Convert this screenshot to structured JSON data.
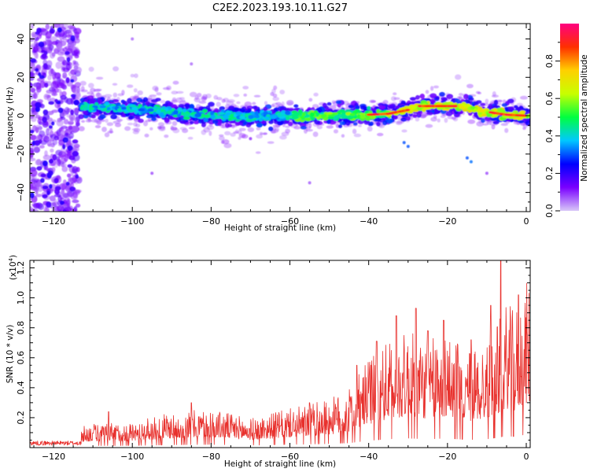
{
  "chart_data": [
    {
      "type": "heatmap",
      "title": "C2E2.2023.193.10.11.G27",
      "xlabel": "Height of straight line (km)",
      "ylabel": "Frequency (Hz)",
      "xlim": [
        -126,
        1
      ],
      "ylim": [
        -50,
        48
      ],
      "x_ticks": [
        -120,
        -100,
        -80,
        -60,
        -40,
        -20,
        0
      ],
      "y_ticks": [
        -40,
        -20,
        0,
        20,
        40
      ],
      "ridge": {
        "x": [
          -113,
          -100,
          -90,
          -80,
          -70,
          -60,
          -50,
          -40,
          -35,
          -30,
          -27,
          -22,
          -18,
          -14,
          -10,
          -5,
          0
        ],
        "y": [
          5,
          3.5,
          2,
          0,
          -0.5,
          0,
          0,
          0.5,
          1,
          3,
          5,
          5,
          5,
          4,
          2,
          0.5,
          0
        ]
      },
      "colorbar": {
        "label": "Normalized spectral amplitude",
        "range": [
          0,
          1
        ],
        "ticks": [
          "0.0",
          "0.2",
          "0.4",
          "0.6",
          "0.8"
        ],
        "tick_values": [
          0,
          0.2,
          0.4,
          0.6,
          0.8
        ],
        "colors": [
          "#d8c8f8",
          "#7a00ff",
          "#0000ff",
          "#00c8ff",
          "#00ff40",
          "#c8ff00",
          "#ffd000",
          "#ff3000",
          "#ff0080"
        ]
      }
    },
    {
      "type": "line",
      "xlabel": "Height of straight line (km)",
      "ylabel": "SNR (10 * v/v)",
      "y_multiplier": "(x10",
      "y_multiplier_exp": "4",
      "y_multiplier_close": ")",
      "xlim": [
        -126,
        1
      ],
      "ylim": [
        0,
        1.25
      ],
      "x_ticks": [
        -120,
        -100,
        -80,
        -60,
        -40,
        -20,
        0
      ],
      "y_ticks": [
        0.2,
        0.4,
        0.6,
        0.8,
        1.0,
        1.2
      ],
      "y_tick_labels": [
        "0.2",
        "0.4",
        "0.6",
        "0.8",
        "1.0",
        "1.2"
      ],
      "series": [
        {
          "name": "SNR",
          "color": "#e8302c",
          "envelope_x": [
            -126,
            -114,
            -112,
            -100,
            -90,
            -80,
            -70,
            -60,
            -50,
            -45,
            -40,
            -35,
            -30,
            -25,
            -20,
            -15,
            -10,
            -7,
            -5,
            -3,
            0
          ],
          "envelope_y": [
            0.04,
            0.04,
            0.12,
            0.13,
            0.18,
            0.2,
            0.15,
            0.2,
            0.25,
            0.3,
            0.45,
            0.55,
            0.6,
            0.55,
            0.6,
            0.5,
            0.55,
            0.65,
            0.75,
            0.7,
            0.85
          ],
          "spikes": [
            {
              "x": -6.5,
              "y": 1.25
            },
            {
              "x": -2,
              "y": 1.02
            },
            {
              "x": -9,
              "y": 0.95
            },
            {
              "x": -14,
              "y": 0.72
            },
            {
              "x": -28,
              "y": 0.93
            },
            {
              "x": -33,
              "y": 0.88
            },
            {
              "x": -21,
              "y": 0.85
            },
            {
              "x": -25,
              "y": 0.78
            },
            {
              "x": -38,
              "y": 0.71
            },
            {
              "x": -43,
              "y": 0.55
            },
            {
              "x": -55,
              "y": 0.3
            },
            {
              "x": -85,
              "y": 0.3
            },
            {
              "x": -106,
              "y": 0.24
            }
          ]
        }
      ]
    }
  ],
  "strings": {
    "title": "C2E2.2023.193.10.11.G27",
    "top_xlabel": "Height of straight line (km)",
    "top_ylabel": "Frequency (Hz)",
    "bottom_xlabel": "Height of straight line (km)",
    "bottom_ylabel": "SNR (10 * v/v)",
    "colorbar_label": "Normalized spectral amplitude"
  }
}
